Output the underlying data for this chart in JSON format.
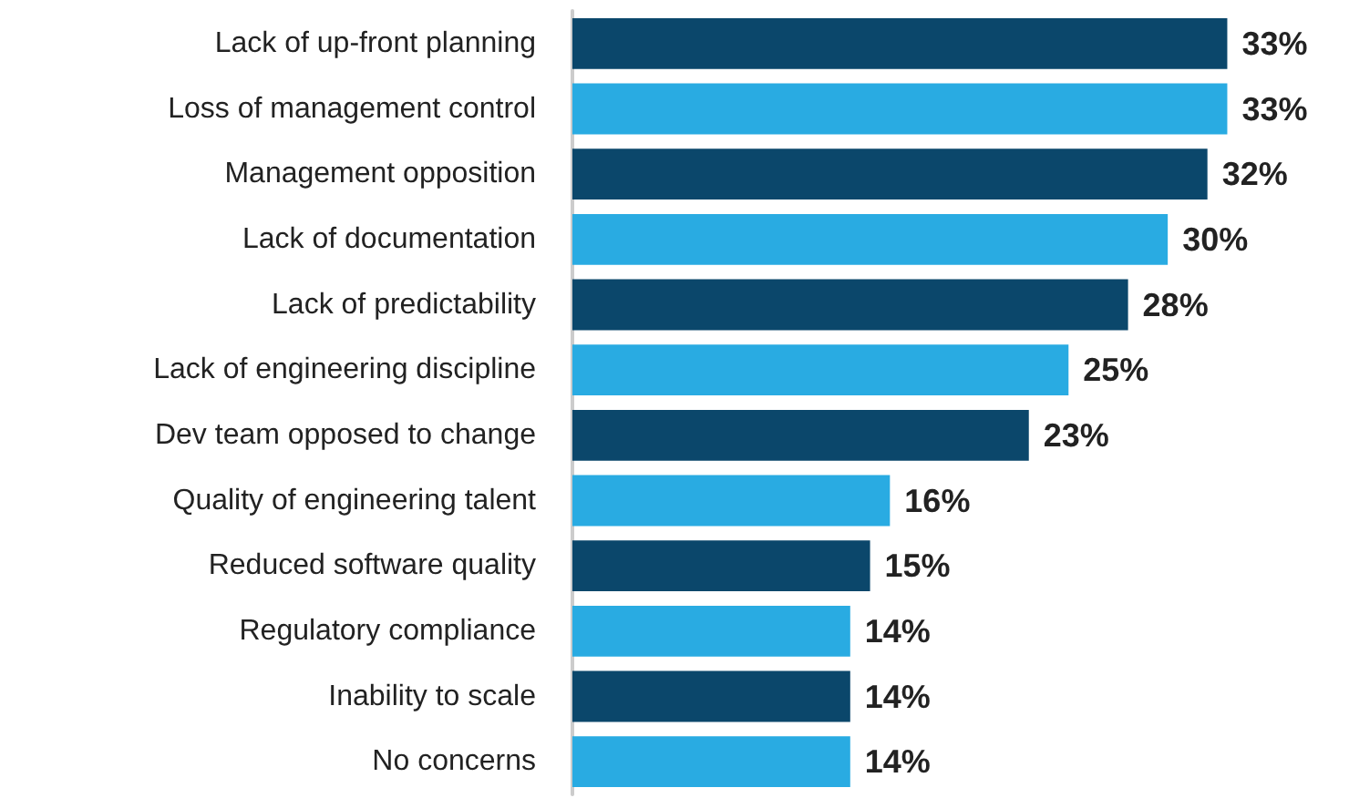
{
  "chart_data": {
    "type": "bar",
    "orientation": "horizontal",
    "categories": [
      "Lack of up-front planning",
      "Loss of management control",
      "Management opposition",
      "Lack of documentation",
      "Lack of predictability",
      "Lack of engineering discipline",
      "Dev team opposed to change",
      "Quality of engineering talent",
      "Reduced software quality",
      "Regulatory compliance",
      "Inability to scale",
      "No concerns"
    ],
    "values": [
      33,
      33,
      32,
      30,
      28,
      25,
      23,
      16,
      15,
      14,
      14,
      14
    ],
    "colors": [
      "#0b476b",
      "#29abe2",
      "#0b476b",
      "#29abe2",
      "#0b476b",
      "#29abe2",
      "#0b476b",
      "#29abe2",
      "#0b476b",
      "#29abe2",
      "#0b476b",
      "#29abe2"
    ],
    "value_labels": [
      "33%",
      "33%",
      "32%",
      "30%",
      "28%",
      "25%",
      "23%",
      "16%",
      "15%",
      "14%",
      "14%",
      "14%"
    ]
  }
}
